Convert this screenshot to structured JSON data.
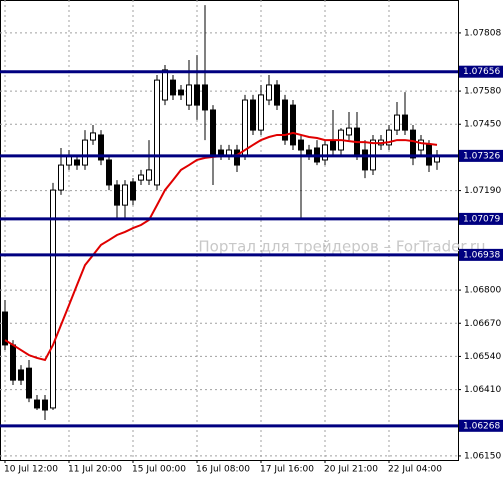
{
  "chart_data": {
    "type": "candlestick",
    "watermark": "Портал для трейдеров – ForTrader.ru",
    "categories": [
      "10 Jul 12:00",
      null,
      null,
      null,
      null,
      null,
      null,
      null,
      "11 Jul 20:00",
      null,
      null,
      null,
      null,
      null,
      null,
      null,
      "15 Jul 00:00",
      null,
      null,
      null,
      null,
      null,
      null,
      null,
      "16 Jul 08:00",
      null,
      null,
      null,
      null,
      null,
      null,
      null,
      "17 Jul 16:00",
      null,
      null,
      null,
      null,
      null,
      null,
      null,
      "20 Jul 21:00",
      null,
      null,
      null,
      null,
      null,
      null,
      null,
      "22 Jul 04:00",
      null,
      null,
      null,
      null,
      null,
      null
    ],
    "open": [
      1.06714,
      1.06585,
      1.06487,
      1.06494,
      1.06369,
      1.06369,
      1.06338,
      1.07192,
      1.0729,
      1.0731,
      1.0729,
      1.07388,
      1.07408,
      1.0731,
      1.07212,
      1.07133,
      1.07224,
      1.07231,
      1.07231,
      1.07212,
      1.07545,
      1.07623,
      1.07584,
      1.07525,
      1.07604,
      1.07604,
      1.07506,
      1.07349,
      1.07329,
      1.07349,
      1.07329,
      1.07545,
      1.07427,
      1.07545,
      1.07604,
      1.07545,
      1.07525,
      1.07388,
      1.07349,
      1.07357,
      1.0731,
      1.07388,
      1.07349,
      1.07408,
      1.07435,
      1.07349,
      1.07271,
      1.07369,
      1.07369,
      1.07427,
      1.07486,
      1.07427,
      1.07349,
      1.07369,
      1.07302
    ],
    "high": [
      1.06761,
      1.06604,
      1.06506,
      1.06526,
      1.06389,
      1.06389,
      1.0722,
      1.07357,
      1.07349,
      1.07329,
      1.07427,
      1.07447,
      1.07427,
      1.07329,
      1.07231,
      1.07231,
      1.07239,
      1.07271,
      1.07388,
      1.07643,
      1.07682,
      1.07643,
      1.07604,
      1.07702,
      1.07721,
      1.07917,
      1.07525,
      1.07369,
      1.07369,
      1.07369,
      1.07565,
      1.07565,
      1.07604,
      1.07643,
      1.07623,
      1.07565,
      1.07545,
      1.07408,
      1.07369,
      1.07388,
      1.07388,
      1.07506,
      1.07435,
      1.07498,
      1.07498,
      1.07388,
      1.07408,
      1.07408,
      1.07447,
      1.07537,
      1.07576,
      1.07447,
      1.07408,
      1.07388,
      1.07349
    ],
    "low": [
      1.06565,
      1.06428,
      1.06428,
      1.06361,
      1.0633,
      1.06291,
      1.0633,
      1.07173,
      1.07271,
      1.07271,
      1.07271,
      1.07369,
      1.0729,
      1.07192,
      1.07082,
      1.07082,
      1.07133,
      1.07212,
      1.07212,
      1.07192,
      1.07525,
      1.07545,
      1.07545,
      1.07506,
      1.07467,
      1.07388,
      1.07212,
      1.0731,
      1.0731,
      1.07263,
      1.0731,
      1.07408,
      1.07408,
      1.07525,
      1.07506,
      1.07369,
      1.07349,
      1.07082,
      1.0731,
      1.0729,
      1.0729,
      1.07329,
      1.07329,
      1.07388,
      1.0731,
      1.07239,
      1.07251,
      1.07349,
      1.07349,
      1.07408,
      1.07408,
      1.0729,
      1.07329,
      1.07263,
      1.07271
    ],
    "close": [
      1.06585,
      1.06447,
      1.06447,
      1.06377,
      1.06338,
      1.0633,
      1.07192,
      1.0729,
      1.07329,
      1.0729,
      1.07388,
      1.07416,
      1.0731,
      1.07212,
      1.07133,
      1.07212,
      1.07153,
      1.07251,
      1.07271,
      1.07623,
      1.07663,
      1.07565,
      1.07565,
      1.07604,
      1.07525,
      1.07506,
      1.07329,
      1.07329,
      1.07349,
      1.0729,
      1.07545,
      1.07427,
      1.07565,
      1.07604,
      1.07525,
      1.07388,
      1.07369,
      1.07349,
      1.07329,
      1.07302,
      1.07369,
      1.07349,
      1.07427,
      1.07435,
      1.07329,
      1.07271,
      1.07388,
      1.07388,
      1.07427,
      1.07486,
      1.07427,
      1.07318,
      1.07388,
      1.0729,
      1.07329
    ],
    "ma_values": [
      1.06604,
      1.06585,
      1.06565,
      1.06545,
      1.06534,
      1.06526,
      1.06585,
      1.06663,
      1.06741,
      1.0682,
      1.06898,
      1.06937,
      1.06977,
      1.06996,
      1.07016,
      1.07028,
      1.07043,
      1.07055,
      1.07075,
      1.07133,
      1.07192,
      1.07231,
      1.07271,
      1.0729,
      1.0731,
      1.07318,
      1.07322,
      1.07325,
      1.07325,
      1.07329,
      1.07349,
      1.07369,
      1.07388,
      1.074,
      1.07408,
      1.07408,
      1.07416,
      1.07408,
      1.074,
      1.07396,
      1.07388,
      1.07388,
      1.07388,
      1.07384,
      1.0738,
      1.0738,
      1.07376,
      1.07376,
      1.0738,
      1.07388,
      1.07388,
      1.07384,
      1.07376,
      1.07373,
      1.07369
    ],
    "ma_color": "#e00000",
    "level_color": "#000080",
    "levels": [
      1.07656,
      1.07326,
      1.07079,
      1.06938,
      1.06268
    ],
    "ylim": [
      1.06134,
      1.07937
    ],
    "yticks": [
      1.07808,
      {
        "value": 1.0758,
        "label": "1.07580"
      },
      {
        "value": 1.0745,
        "label": "1.07450"
      },
      {
        "value": 1.0719,
        "label": "1.07190"
      },
      {
        "value": 1.068,
        "label": "1.06800"
      },
      {
        "value": 1.0667,
        "label": "1.06670"
      },
      {
        "value": 1.0654,
        "label": "1.06540"
      },
      {
        "value": 1.0641,
        "label": "1.06410"
      },
      {
        "value": 1.0615,
        "label": "1.06150"
      }
    ],
    "grid": true
  }
}
